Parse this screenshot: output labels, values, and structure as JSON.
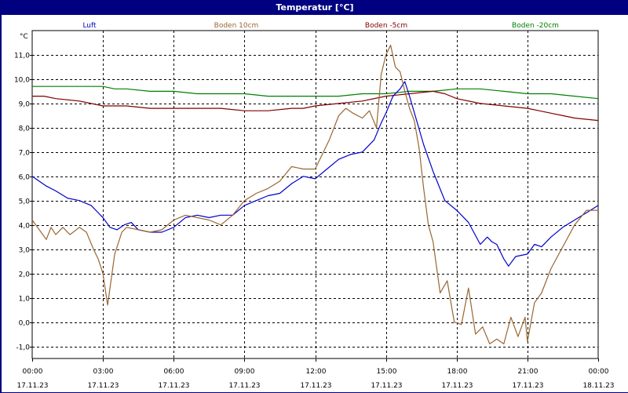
{
  "chart_data": {
    "type": "line",
    "title": "Temperatur [°C]",
    "ylabel": "°C",
    "ylim": [
      -1.5,
      12.0
    ],
    "yticks": [
      -1.0,
      0.0,
      1.0,
      2.0,
      3.0,
      4.0,
      5.0,
      6.0,
      7.0,
      8.0,
      9.0,
      10.0,
      11.0
    ],
    "ytick_labels": [
      "-1,0",
      "0,0",
      "1,0",
      "2,0",
      "3,0",
      "4,0",
      "5,0",
      "6,0",
      "7,0",
      "8,0",
      "9,0",
      "10,0",
      "11,0"
    ],
    "xlim": [
      0,
      24
    ],
    "xticks": [
      0,
      3,
      6,
      9,
      12,
      15,
      18,
      21,
      24
    ],
    "xtick_time": [
      "00:00",
      "03:00",
      "06:00",
      "09:00",
      "12:00",
      "15:00",
      "18:00",
      "21:00",
      "00:00"
    ],
    "xtick_date": [
      "17.11.23",
      "17.11.23",
      "17.11.23",
      "17.11.23",
      "17.11.23",
      "17.11.23",
      "17.11.23",
      "17.11.23",
      "18.11.23"
    ],
    "grid": true,
    "legend_position": "top",
    "series": [
      {
        "name": "Luft",
        "color": "#0000cc",
        "x": [
          0,
          0.3,
          0.6,
          1.0,
          1.5,
          2.0,
          2.5,
          3.0,
          3.3,
          3.6,
          3.9,
          4.2,
          4.5,
          5.0,
          5.5,
          6.0,
          6.5,
          7.0,
          7.5,
          8.0,
          8.5,
          9.0,
          9.5,
          10.0,
          10.5,
          11.0,
          11.5,
          12.0,
          12.5,
          13.0,
          13.5,
          14.0,
          14.5,
          14.8,
          15.0,
          15.3,
          15.6,
          15.8,
          16.0,
          16.3,
          16.6,
          17.0,
          17.5,
          18.0,
          18.5,
          19.0,
          19.3,
          19.5,
          19.7,
          20.0,
          20.2,
          20.5,
          21.0,
          21.3,
          21.6,
          22.0,
          22.5,
          23.0,
          23.5,
          24.0
        ],
        "y": [
          6.0,
          5.8,
          5.6,
          5.4,
          5.1,
          5.0,
          4.8,
          4.3,
          3.9,
          3.8,
          4.0,
          4.1,
          3.8,
          3.7,
          3.7,
          3.9,
          4.3,
          4.4,
          4.3,
          4.4,
          4.4,
          4.8,
          5.0,
          5.2,
          5.3,
          5.7,
          6.0,
          5.9,
          6.3,
          6.7,
          6.9,
          7.0,
          7.5,
          8.2,
          8.6,
          9.3,
          9.6,
          9.9,
          9.3,
          8.3,
          7.3,
          6.2,
          5.0,
          4.6,
          4.1,
          3.2,
          3.5,
          3.3,
          3.2,
          2.6,
          2.3,
          2.7,
          2.8,
          3.2,
          3.1,
          3.5,
          3.9,
          4.2,
          4.5,
          4.8
        ]
      },
      {
        "name": "Boden 10cm",
        "color": "#996633",
        "x": [
          0,
          0.3,
          0.6,
          0.8,
          1.0,
          1.3,
          1.6,
          2.0,
          2.3,
          2.6,
          2.8,
          3.0,
          3.2,
          3.5,
          3.8,
          4.0,
          4.5,
          5.0,
          5.5,
          6.0,
          6.5,
          7.0,
          7.5,
          8.0,
          8.5,
          9.0,
          9.5,
          10.0,
          10.5,
          11.0,
          11.5,
          12.0,
          12.3,
          12.6,
          13.0,
          13.3,
          13.6,
          14.0,
          14.3,
          14.6,
          14.8,
          15.0,
          15.2,
          15.4,
          15.6,
          15.8,
          16.0,
          16.2,
          16.4,
          16.6,
          16.8,
          17.0,
          17.3,
          17.6,
          17.9,
          18.2,
          18.5,
          18.8,
          19.1,
          19.4,
          19.7,
          20.0,
          20.3,
          20.6,
          20.9,
          21.0,
          21.3,
          21.6,
          22.0,
          22.5,
          23.0,
          23.5,
          24.0
        ],
        "y": [
          4.2,
          3.8,
          3.4,
          3.9,
          3.6,
          3.9,
          3.6,
          3.9,
          3.7,
          3.0,
          2.6,
          2.0,
          0.7,
          2.8,
          3.7,
          3.9,
          3.8,
          3.7,
          3.8,
          4.2,
          4.4,
          4.3,
          4.2,
          4.0,
          4.4,
          5.0,
          5.3,
          5.5,
          5.8,
          6.4,
          6.3,
          6.3,
          6.9,
          7.5,
          8.5,
          8.8,
          8.6,
          8.4,
          8.7,
          8.0,
          10.2,
          11.0,
          11.4,
          10.5,
          10.3,
          9.5,
          8.8,
          8.3,
          7.2,
          5.5,
          4.0,
          3.3,
          1.2,
          1.7,
          0.0,
          -0.1,
          1.4,
          -0.5,
          -0.2,
          -0.9,
          -0.7,
          -0.9,
          0.2,
          -0.6,
          0.2,
          -0.8,
          0.8,
          1.2,
          2.2,
          3.1,
          4.0,
          4.6,
          4.6
        ]
      },
      {
        "name": "Boden -5cm",
        "color": "#800000",
        "x": [
          0,
          0.5,
          1.0,
          2.0,
          2.5,
          3.0,
          4.0,
          5.0,
          6.0,
          7.0,
          8.0,
          9.0,
          10.0,
          11.0,
          11.5,
          12.0,
          13.0,
          14.0,
          15.0,
          16.0,
          17.0,
          17.5,
          18.0,
          19.0,
          20.0,
          21.0,
          21.5,
          22.0,
          22.5,
          23.0,
          24.0
        ],
        "y": [
          9.3,
          9.3,
          9.2,
          9.1,
          9.0,
          8.9,
          8.9,
          8.8,
          8.8,
          8.8,
          8.8,
          8.7,
          8.7,
          8.8,
          8.8,
          8.9,
          9.0,
          9.1,
          9.3,
          9.4,
          9.5,
          9.4,
          9.2,
          9.0,
          8.9,
          8.8,
          8.7,
          8.6,
          8.5,
          8.4,
          8.3
        ]
      },
      {
        "name": "Boden -20cm",
        "color": "#008000",
        "x": [
          0,
          1.0,
          2.0,
          3.0,
          3.5,
          4.0,
          5.0,
          6.0,
          7.0,
          8.0,
          9.0,
          10.0,
          11.0,
          12.0,
          13.0,
          14.0,
          15.0,
          16.0,
          17.0,
          18.0,
          19.0,
          20.0,
          21.0,
          22.0,
          23.0,
          24.0
        ],
        "y": [
          9.7,
          9.7,
          9.7,
          9.7,
          9.6,
          9.6,
          9.5,
          9.5,
          9.4,
          9.4,
          9.4,
          9.3,
          9.3,
          9.3,
          9.3,
          9.4,
          9.4,
          9.5,
          9.5,
          9.6,
          9.6,
          9.5,
          9.4,
          9.4,
          9.3,
          9.2
        ]
      }
    ]
  }
}
